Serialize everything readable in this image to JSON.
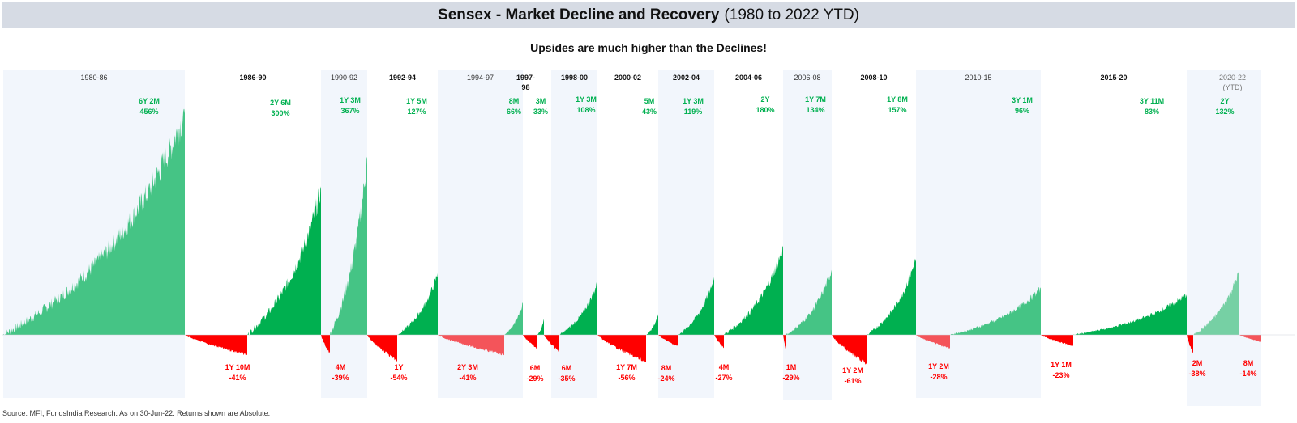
{
  "title": "Sensex - Market Decline and Recovery",
  "title_suffix": "(1980 to 2022 YTD)",
  "subtitle": "Upsides are much higher than the Declines!",
  "source": "Source: MFI, FundsIndia Research. As on 30-Jun-22. Returns shown are Absolute.",
  "colors": {
    "up_dark": "#00b050",
    "up_light": "#45c485",
    "up_faint": "#76d0a4",
    "down_dark": "#ff0000",
    "down_light": "#f4545a",
    "up_text": "#00b050",
    "down_text": "#ff0000",
    "band_fill": "#f2f6fc"
  },
  "chart_data": {
    "type": "area",
    "title": "Sensex - Market Decline and Recovery",
    "xlabel": "",
    "ylabel": "",
    "unit": "% absolute return",
    "grid": false,
    "legend": "none",
    "series": [
      {
        "period": "1980-86",
        "direction": "up",
        "duration": "6Y 2M",
        "value": 456
      },
      {
        "period": "1986-90",
        "direction": "down",
        "duration": "1Y 10M",
        "value": -41
      },
      {
        "period": "1986-90",
        "direction": "up",
        "duration": "2Y 6M",
        "value": 300
      },
      {
        "period": "1990-92",
        "direction": "down",
        "duration": "4M",
        "value": -39
      },
      {
        "period": "1990-92",
        "direction": "up",
        "duration": "1Y 3M",
        "value": 367
      },
      {
        "period": "1992-94",
        "direction": "down",
        "duration": "1Y",
        "value": -54
      },
      {
        "period": "1992-94",
        "direction": "up",
        "duration": "1Y 5M",
        "value": 127
      },
      {
        "period": "1994-97",
        "direction": "down",
        "duration": "2Y 3M",
        "value": -41
      },
      {
        "period": "1994-97",
        "direction": "up",
        "duration": "8M",
        "value": 66
      },
      {
        "period": "1997-98",
        "direction": "down",
        "duration": "6M",
        "value": -29
      },
      {
        "period": "1997-98",
        "direction": "up",
        "duration": "3M",
        "value": 33
      },
      {
        "period": "1998-00",
        "direction": "down",
        "duration": "6M",
        "value": -35
      },
      {
        "period": "1998-00",
        "direction": "up",
        "duration": "1Y 3M",
        "value": 108
      },
      {
        "period": "2000-02",
        "direction": "down",
        "duration": "1Y 7M",
        "value": -56
      },
      {
        "period": "2000-02",
        "direction": "up",
        "duration": "5M",
        "value": 43
      },
      {
        "period": "2002-04",
        "direction": "down",
        "duration": "8M",
        "value": -24
      },
      {
        "period": "2002-04",
        "direction": "up",
        "duration": "1Y 3M",
        "value": 119
      },
      {
        "period": "2004-06",
        "direction": "down",
        "duration": "4M",
        "value": -27
      },
      {
        "period": "2004-06",
        "direction": "up",
        "duration": "2Y",
        "value": 180
      },
      {
        "period": "2006-08",
        "direction": "down",
        "duration": "1M",
        "value": -29
      },
      {
        "period": "2006-08",
        "direction": "up",
        "duration": "1Y 7M",
        "value": 134
      },
      {
        "period": "2008-10",
        "direction": "down",
        "duration": "1Y 2M",
        "value": -61
      },
      {
        "period": "2008-10",
        "direction": "up",
        "duration": "1Y 8M",
        "value": 157
      },
      {
        "period": "2010-15",
        "direction": "down",
        "duration": "1Y 2M",
        "value": -28
      },
      {
        "period": "2010-15",
        "direction": "up",
        "duration": "3Y 1M",
        "value": 96
      },
      {
        "period": "2015-20",
        "direction": "down",
        "duration": "1Y 1M",
        "value": -23
      },
      {
        "period": "2015-20",
        "direction": "up",
        "duration": "3Y 11M",
        "value": 83
      },
      {
        "period": "2020-22 (YTD)",
        "direction": "down",
        "duration": "2M",
        "value": -38
      },
      {
        "period": "2020-22 (YTD)",
        "direction": "up",
        "duration": "2Y",
        "value": 132
      },
      {
        "period": "2020-22 (YTD)",
        "direction": "down",
        "duration": "8M",
        "value": -14
      }
    ]
  }
}
